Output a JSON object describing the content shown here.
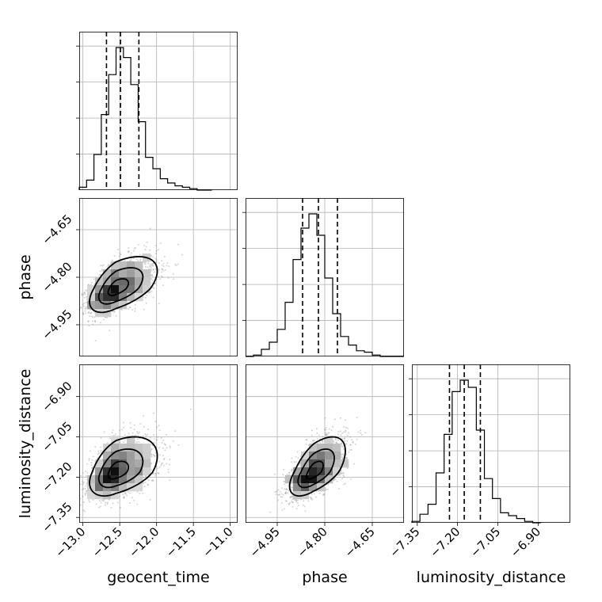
{
  "chart_data": {
    "type": "corner",
    "parameters": [
      "geocent_time",
      "phase",
      "luminosity_distance"
    ],
    "axis_labels": {
      "x": [
        "geocent_time",
        "phase",
        "luminosity_distance"
      ],
      "y": [
        "",
        "phase",
        "luminosity_distance"
      ]
    },
    "ticks": {
      "geocent_time": {
        "values": [
          -13.0,
          -12.5,
          -12.0,
          -11.5,
          -11.0
        ],
        "labels": [
          "−13.0",
          "−12.5",
          "−12.0",
          "−11.5",
          "−11.0"
        ]
      },
      "phase": {
        "values": [
          -4.95,
          -4.8,
          -4.65
        ],
        "labels": [
          "−4.95",
          "−4.80",
          "−4.65"
        ]
      },
      "luminosity_distance": {
        "values": [
          -7.35,
          -7.2,
          -7.05,
          -6.9
        ],
        "labels": [
          "−7.35",
          "−7.20",
          "−7.05",
          "−6.90"
        ]
      }
    },
    "ranges": {
      "geocent_time": [
        -13.05,
        -10.9
      ],
      "phase": [
        -5.05,
        -4.55
      ],
      "luminosity_distance": [
        -7.37,
        -6.78
      ]
    },
    "quantiles": {
      "geocent_time": [
        -12.68,
        -12.49,
        -12.24
      ],
      "phase": [
        -4.87,
        -4.82,
        -4.76
      ],
      "luminosity_distance": [
        -7.23,
        -7.175,
        -7.115
      ]
    },
    "histograms": {
      "geocent_time": {
        "edges": [
          -13.05,
          -12.95,
          -12.85,
          -12.75,
          -12.65,
          -12.55,
          -12.45,
          -12.35,
          -12.25,
          -12.15,
          -12.05,
          -11.95,
          -11.85,
          -11.75,
          -11.65,
          -11.55,
          -11.45,
          -11.35,
          -11.25
        ],
        "counts": [
          0.02,
          0.07,
          0.25,
          0.53,
          0.81,
          1.0,
          0.93,
          0.74,
          0.48,
          0.23,
          0.15,
          0.08,
          0.05,
          0.03,
          0.02,
          0.01,
          0.0,
          0.0
        ]
      },
      "phase": {
        "edges": [
          -5.05,
          -5.025,
          -5.0,
          -4.975,
          -4.95,
          -4.925,
          -4.9,
          -4.875,
          -4.85,
          -4.825,
          -4.8,
          -4.775,
          -4.75,
          -4.725,
          -4.7,
          -4.675,
          -4.65,
          -4.625,
          -4.6,
          -4.575,
          -4.55
        ],
        "counts": [
          0.0,
          0.01,
          0.05,
          0.1,
          0.19,
          0.38,
          0.68,
          0.9,
          1.0,
          0.85,
          0.55,
          0.3,
          0.14,
          0.08,
          0.04,
          0.03,
          0.01,
          0.0,
          0.0,
          0.0
        ]
      },
      "luminosity_distance": {
        "edges": [
          -7.37,
          -7.34,
          -7.31,
          -7.28,
          -7.25,
          -7.22,
          -7.19,
          -7.16,
          -7.13,
          -7.1,
          -7.07,
          -7.04,
          -7.01,
          -6.98,
          -6.95,
          -6.92,
          -6.89
        ],
        "counts": [
          0.01,
          0.06,
          0.13,
          0.35,
          0.62,
          0.92,
          1.0,
          0.95,
          0.65,
          0.31,
          0.17,
          0.07,
          0.05,
          0.03,
          0.01,
          0.0
        ]
      }
    },
    "correlations": {
      "phase_vs_geocent_time": 0.55,
      "luminosity_distance_vs_geocent_time": 0.45,
      "luminosity_distance_vs_phase": 0.6
    },
    "stats": {
      "geocent_time": {
        "mode": -12.55,
        "sd_left": 0.18,
        "sd_right": 0.28
      },
      "phase": {
        "mode": -4.835,
        "sd_left": 0.038,
        "sd_right": 0.05
      },
      "luminosity_distance": {
        "mode": -7.18,
        "sd_left": 0.045,
        "sd_right": 0.065
      }
    },
    "scatter_color": "#808080",
    "line_color": "#000000",
    "grid_color": "#b0b0b0"
  }
}
